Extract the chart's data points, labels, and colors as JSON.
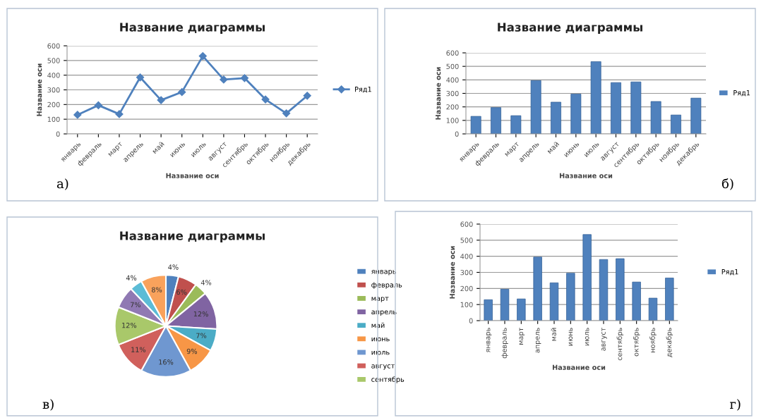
{
  "chart_data": [
    {
      "type": "line",
      "title": "Название диаграммы",
      "xlabel": "Название оси",
      "ylabel": "Название оси",
      "categories": [
        "январь",
        "февраль",
        "март",
        "апрель",
        "май",
        "июнь",
        "июль",
        "август",
        "сентябрь",
        "октябрь",
        "ноябрь",
        "декабрь"
      ],
      "series": [
        {
          "name": "Ряд1",
          "color": "#4f81bd",
          "values": [
            130,
            195,
            135,
            385,
            230,
            285,
            530,
            370,
            380,
            235,
            140,
            260
          ]
        }
      ],
      "ylim": [
        0,
        600
      ],
      "yticks": [
        0,
        100,
        200,
        300,
        400,
        500,
        600
      ],
      "grid": "y",
      "legend": "right",
      "marker": "diamond",
      "line_style": "solid",
      "annotations": [
        "а)"
      ]
    },
    {
      "type": "bar",
      "title": "Название диаграммы",
      "xlabel": "Название оси",
      "ylabel": "Название оси",
      "categories": [
        "январь",
        "февраль",
        "март",
        "апрель",
        "май",
        "июнь",
        "июль",
        "август",
        "сентябрь",
        "октябрь",
        "ноябрь",
        "декабрь"
      ],
      "series": [
        {
          "name": "Ряд1",
          "color": "#4f81bd",
          "values": [
            130,
            195,
            135,
            395,
            235,
            295,
            535,
            380,
            385,
            240,
            140,
            265
          ]
        }
      ],
      "ylim": [
        0,
        600
      ],
      "yticks": [
        0,
        100,
        200,
        300,
        400,
        500,
        600
      ],
      "grid": "y",
      "legend": "right",
      "annotations": [
        "б)"
      ]
    },
    {
      "type": "pie",
      "title": "Название диаграммы",
      "categories": [
        "январь",
        "февраль",
        "март",
        "апрель",
        "май",
        "июнь",
        "июль",
        "август",
        "сентябрь",
        null,
        null,
        null
      ],
      "values": [
        4,
        6,
        4,
        12,
        7,
        9,
        16,
        11,
        12,
        7,
        4,
        8
      ],
      "value_labels": [
        "4%",
        "6%",
        "4%",
        "12%",
        "7%",
        "9%",
        "16%",
        "11%",
        "12%",
        "7%",
        "4%",
        "8%"
      ],
      "colors": [
        "#4f81bd",
        "#c0504d",
        "#9bbb59",
        "#8064a2",
        "#4bacc6",
        "#f79646",
        "#6f97d0",
        "#d0605c",
        "#a9c86a",
        "#9079b3",
        "#5cbcd6",
        "#f9a25c"
      ],
      "legend": "right",
      "annotations": [
        "в)"
      ]
    },
    {
      "type": "bar",
      "xlabel": "Название оси",
      "ylabel": "Название оси",
      "categories": [
        "январь",
        "февраль",
        "март",
        "апрель",
        "май",
        "июнь",
        "июль",
        "август",
        "сентябрь",
        "октябрь",
        "ноябрь",
        "декабрь"
      ],
      "series": [
        {
          "name": "Ряд1",
          "color": "#4f81bd",
          "values": [
            130,
            195,
            135,
            395,
            235,
            295,
            535,
            380,
            385,
            240,
            140,
            265
          ]
        }
      ],
      "ylim": [
        0,
        600
      ],
      "yticks": [
        0,
        100,
        200,
        300,
        400,
        500,
        600
      ],
      "grid": "y",
      "legend": "right",
      "annotations": [
        "г)"
      ]
    }
  ]
}
